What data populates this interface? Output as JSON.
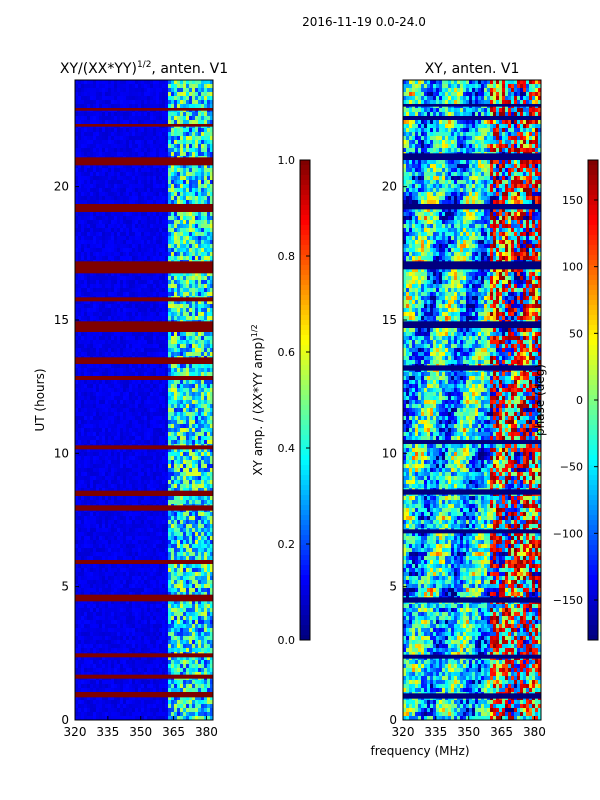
{
  "figure": {
    "suptitle": "2016-11-19 0.0-24.0",
    "xlabel": "frequency (MHz)"
  },
  "colors": {
    "nan_band": "#7f0000",
    "axis": "#000000"
  },
  "chart_data": [
    {
      "type": "heatmap",
      "title": "XY/(XX*YY)",
      "title_superscript": "1/2",
      "title_suffix": ", anten. V1",
      "xlabel": "",
      "ylabel": "UT (hours)",
      "xlim": [
        320,
        383
      ],
      "ylim": [
        0,
        24
      ],
      "xticks": [
        320,
        335,
        350,
        365,
        380
      ],
      "yticks": [
        0,
        5,
        10,
        15,
        20
      ],
      "colormap": "jet",
      "colorbar": {
        "label": "XY amp. / (XX*YY amp)",
        "label_superscript": "1/2",
        "ticks": [
          "0.0",
          "0.2",
          "0.4",
          "0.6",
          "0.8",
          "1.0"
        ],
        "ticks_values": [
          0.0,
          0.2,
          0.4,
          0.6,
          0.8,
          1.0
        ],
        "range": [
          0.0,
          1.0
        ]
      },
      "baseline_value": 0.08,
      "high_freq_start_mhz": 362,
      "flagged_bands_hours": [
        [
          0.85,
          1.05
        ],
        [
          1.55,
          1.7
        ],
        [
          2.35,
          2.5
        ],
        [
          4.45,
          4.7
        ],
        [
          5.85,
          6.0
        ],
        [
          7.85,
          8.05
        ],
        [
          8.4,
          8.6
        ],
        [
          10.15,
          10.3
        ],
        [
          12.75,
          12.9
        ],
        [
          13.35,
          13.6
        ],
        [
          14.55,
          14.95
        ],
        [
          15.7,
          15.85
        ],
        [
          16.75,
          17.2
        ],
        [
          19.05,
          19.35
        ],
        [
          20.8,
          21.1
        ],
        [
          22.25,
          22.35
        ],
        [
          22.85,
          22.95
        ]
      ]
    },
    {
      "type": "heatmap",
      "title": "XY, anten. V1",
      "xlabel": "",
      "ylabel": "",
      "xlim": [
        320,
        383
      ],
      "ylim": [
        0,
        24
      ],
      "xticks": [
        320,
        335,
        350,
        365,
        380
      ],
      "yticks": [
        0,
        5,
        10,
        15,
        20
      ],
      "colormap": "jet",
      "colorbar": {
        "label": "phase (deg)",
        "ticks": [
          "150",
          "100",
          "50",
          "0",
          "−50",
          "−100",
          "−150"
        ],
        "ticks_values": [
          150,
          100,
          50,
          0,
          -50,
          -100,
          -150
        ],
        "range": [
          -180,
          180
        ]
      },
      "flagged_bands_hours": [
        [
          0.8,
          1.0
        ],
        [
          2.3,
          2.45
        ],
        [
          4.4,
          4.6
        ],
        [
          7.0,
          7.15
        ],
        [
          8.45,
          8.65
        ],
        [
          10.35,
          10.5
        ],
        [
          13.1,
          13.3
        ],
        [
          14.7,
          14.95
        ],
        [
          16.9,
          17.2
        ],
        [
          19.15,
          19.35
        ],
        [
          21.0,
          21.25
        ],
        [
          22.5,
          22.65
        ],
        [
          23.0,
          23.1
        ]
      ]
    }
  ]
}
